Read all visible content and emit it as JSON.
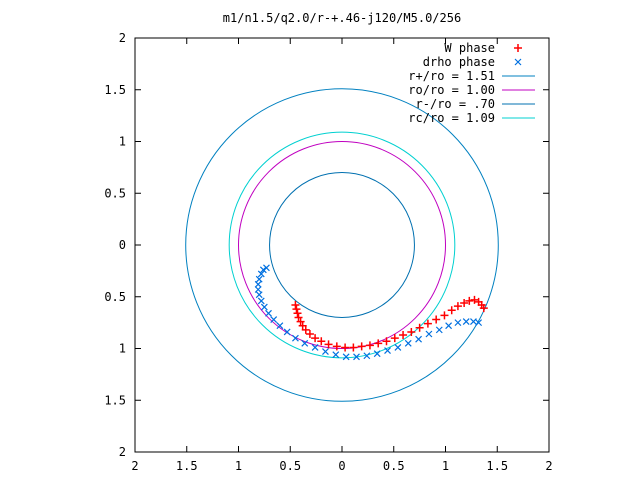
{
  "chart_data": {
    "type": "scatter",
    "title": "m1/n1.5/q2.0/r-+.46-j120/M5.0/256",
    "xlabel": "",
    "ylabel": "",
    "xlim": [
      -2,
      2
    ],
    "ylim": [
      -2,
      2
    ],
    "aspect": "equal",
    "grid": false,
    "legend_position": "top-right",
    "x_tick_values": [
      -2,
      -1.5,
      -1,
      -0.5,
      0,
      0.5,
      1,
      1.5,
      2
    ],
    "x_tick_labels": [
      "2",
      "1.5",
      "1",
      "0.5",
      "0",
      "0.5",
      "1",
      "1.5",
      "2"
    ],
    "y_tick_values": [
      2,
      1.5,
      1,
      0.5,
      0,
      -0.5,
      -1,
      -1.5,
      -2
    ],
    "y_tick_labels": [
      "2",
      "1.5",
      "1",
      "0.5",
      "0",
      "0.5",
      "1",
      "1.5",
      "2"
    ],
    "circles": [
      {
        "name": "r+/ro = 1.51",
        "radius": 1.51,
        "color": "#0080c0"
      },
      {
        "name": "ro/ro = 1.00",
        "radius": 1.0,
        "color": "#c000c0"
      },
      {
        "name": "r-/ro = .70",
        "radius": 0.7,
        "color": "#0070b0"
      },
      {
        "name": "rc/ro = 1.09",
        "radius": 1.09,
        "color": "#00d0d0"
      }
    ],
    "series": [
      {
        "name": "W phase",
        "marker": "+",
        "color": "#ff0000",
        "points": [
          [
            -0.45,
            -0.58
          ],
          [
            -0.44,
            -0.62
          ],
          [
            -0.43,
            -0.66
          ],
          [
            -0.42,
            -0.7
          ],
          [
            -0.4,
            -0.74
          ],
          [
            -0.38,
            -0.78
          ],
          [
            -0.35,
            -0.82
          ],
          [
            -0.31,
            -0.86
          ],
          [
            -0.26,
            -0.9
          ],
          [
            -0.2,
            -0.93
          ],
          [
            -0.13,
            -0.96
          ],
          [
            -0.05,
            -0.98
          ],
          [
            0.03,
            -0.99
          ],
          [
            0.11,
            -0.99
          ],
          [
            0.19,
            -0.98
          ],
          [
            0.27,
            -0.97
          ],
          [
            0.35,
            -0.95
          ],
          [
            0.43,
            -0.93
          ],
          [
            0.51,
            -0.9
          ],
          [
            0.59,
            -0.87
          ],
          [
            0.67,
            -0.84
          ],
          [
            0.75,
            -0.8
          ],
          [
            0.83,
            -0.76
          ],
          [
            0.91,
            -0.72
          ],
          [
            0.99,
            -0.68
          ],
          [
            1.06,
            -0.63
          ],
          [
            1.12,
            -0.59
          ],
          [
            1.18,
            -0.56
          ],
          [
            1.23,
            -0.54
          ],
          [
            1.28,
            -0.53
          ],
          [
            1.32,
            -0.55
          ],
          [
            1.35,
            -0.58
          ],
          [
            1.37,
            -0.61
          ]
        ]
      },
      {
        "name": "drho phase",
        "marker": "x",
        "color": "#0070e0",
        "points": [
          [
            -0.73,
            -0.22
          ],
          [
            -0.76,
            -0.24
          ],
          [
            -0.78,
            -0.28
          ],
          [
            -0.8,
            -0.33
          ],
          [
            -0.81,
            -0.38
          ],
          [
            -0.81,
            -0.43
          ],
          [
            -0.8,
            -0.48
          ],
          [
            -0.78,
            -0.54
          ],
          [
            -0.75,
            -0.6
          ],
          [
            -0.71,
            -0.66
          ],
          [
            -0.66,
            -0.72
          ],
          [
            -0.6,
            -0.78
          ],
          [
            -0.53,
            -0.84
          ],
          [
            -0.45,
            -0.9
          ],
          [
            -0.36,
            -0.95
          ],
          [
            -0.26,
            -0.99
          ],
          [
            -0.16,
            -1.03
          ],
          [
            -0.06,
            -1.06
          ],
          [
            0.04,
            -1.08
          ],
          [
            0.14,
            -1.08
          ],
          [
            0.24,
            -1.07
          ],
          [
            0.34,
            -1.05
          ],
          [
            0.44,
            -1.02
          ],
          [
            0.54,
            -0.99
          ],
          [
            0.64,
            -0.95
          ],
          [
            0.74,
            -0.91
          ],
          [
            0.84,
            -0.86
          ],
          [
            0.94,
            -0.82
          ],
          [
            1.03,
            -0.78
          ],
          [
            1.12,
            -0.75
          ],
          [
            1.2,
            -0.74
          ],
          [
            1.27,
            -0.74
          ],
          [
            1.32,
            -0.75
          ]
        ]
      }
    ]
  }
}
